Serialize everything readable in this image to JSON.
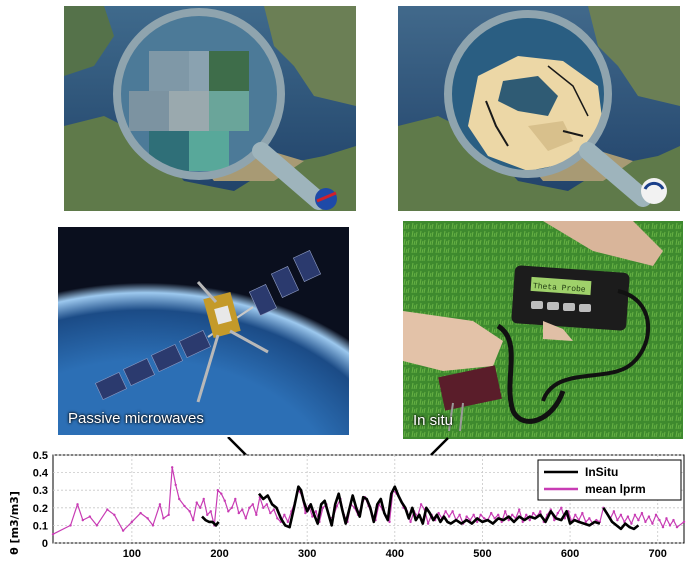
{
  "captions": {
    "satellite": "Passive microwaves",
    "insitu": "In situ"
  },
  "device_screen_text": "Theta Probe",
  "colors": {
    "insitu": "#000000",
    "lprm": "#c83cb4"
  },
  "chart_data": {
    "type": "line",
    "xlabel": "",
    "ylabel": "θ [m3/m3]",
    "xlim": [
      10,
      730
    ],
    "ylim": [
      0,
      0.5
    ],
    "xticks": [
      100,
      200,
      300,
      400,
      500,
      600,
      700
    ],
    "yticks": [
      0,
      0.1,
      0.2,
      0.3,
      0.4,
      0.5
    ],
    "grid": true,
    "legend_position": "top-right",
    "series": [
      {
        "name": "InSitu",
        "color": "#000000",
        "segments": [
          [
            [
              180,
              0.15
            ],
            [
              184,
              0.13
            ],
            [
              188,
              0.12
            ],
            [
              192,
              0.12
            ],
            [
              196,
              0.1
            ],
            [
              199,
              0.12
            ]
          ],
          [
            [
              245,
              0.28
            ],
            [
              250,
              0.25
            ],
            [
              255,
              0.27
            ],
            [
              260,
              0.22
            ],
            [
              265,
              0.2
            ],
            [
              270,
              0.14
            ],
            [
              275,
              0.1
            ],
            [
              280,
              0.09
            ],
            [
              285,
              0.2
            ],
            [
              290,
              0.32
            ],
            [
              293,
              0.3
            ],
            [
              296,
              0.24
            ],
            [
              300,
              0.18
            ],
            [
              304,
              0.22
            ],
            [
              308,
              0.16
            ],
            [
              312,
              0.11
            ],
            [
              316,
              0.22
            ],
            [
              320,
              0.24
            ],
            [
              324,
              0.17
            ],
            [
              328,
              0.1
            ],
            [
              332,
              0.22
            ],
            [
              336,
              0.28
            ],
            [
              340,
              0.19
            ],
            [
              344,
              0.11
            ],
            [
              348,
              0.19
            ],
            [
              352,
              0.27
            ],
            [
              356,
              0.2
            ],
            [
              360,
              0.15
            ],
            [
              364,
              0.26
            ],
            [
              368,
              0.25
            ],
            [
              372,
              0.2
            ],
            [
              376,
              0.12
            ],
            [
              380,
              0.22
            ],
            [
              384,
              0.25
            ],
            [
              388,
              0.17
            ],
            [
              392,
              0.13
            ],
            [
              396,
              0.28
            ],
            [
              400,
              0.32
            ],
            [
              404,
              0.27
            ],
            [
              408,
              0.23
            ],
            [
              412,
              0.2
            ],
            [
              416,
              0.14
            ],
            [
              420,
              0.2
            ],
            [
              424,
              0.13
            ],
            [
              428,
              0.16
            ],
            [
              432,
              0.11
            ],
            [
              436,
              0.2
            ],
            [
              440,
              0.17
            ],
            [
              444,
              0.13
            ],
            [
              448,
              0.16
            ],
            [
              452,
              0.12
            ],
            [
              456,
              0.15
            ],
            [
              460,
              0.12
            ],
            [
              464,
              0.11
            ],
            [
              470,
              0.13
            ],
            [
              476,
              0.11
            ],
            [
              482,
              0.13
            ],
            [
              488,
              0.11
            ],
            [
              494,
              0.14
            ],
            [
              500,
              0.12
            ],
            [
              506,
              0.13
            ],
            [
              512,
              0.11
            ],
            [
              518,
              0.14
            ],
            [
              524,
              0.13
            ],
            [
              530,
              0.15
            ],
            [
              536,
              0.12
            ],
            [
              542,
              0.15
            ],
            [
              548,
              0.13
            ],
            [
              554,
              0.15
            ],
            [
              560,
              0.14
            ],
            [
              566,
              0.16
            ],
            [
              572,
              0.12
            ],
            [
              578,
              0.18
            ],
            [
              584,
              0.14
            ],
            [
              590,
              0.13
            ],
            [
              596,
              0.18
            ],
            [
              600,
              0.11
            ],
            [
              605,
              0.13
            ],
            [
              610,
              0.12
            ],
            [
              616,
              0.11
            ],
            [
              622,
              0.1
            ],
            [
              628,
              0.12
            ],
            [
              634,
              0.11
            ]
          ],
          [
            [
              638,
              0.2
            ],
            [
              643,
              0.16
            ],
            [
              648,
              0.12
            ],
            [
              653,
              0.1
            ],
            [
              658,
              0.08
            ],
            [
              663,
              0.11
            ],
            [
              668,
              0.09
            ],
            [
              673,
              0.08
            ],
            [
              678,
              0.1
            ]
          ]
        ]
      },
      {
        "name": "mean lprm",
        "color": "#c83cb4",
        "segments": [
          [
            [
              10,
              0.05
            ],
            [
              30,
              0.1
            ],
            [
              38,
              0.22
            ],
            [
              44,
              0.13
            ],
            [
              52,
              0.15
            ],
            [
              60,
              0.1
            ],
            [
              72,
              0.19
            ],
            [
              80,
              0.16
            ],
            [
              90,
              0.07
            ],
            [
              100,
              0.12
            ],
            [
              110,
              0.17
            ],
            [
              118,
              0.14
            ],
            [
              124,
              0.1
            ],
            [
              132,
              0.22
            ],
            [
              136,
              0.14
            ],
            [
              142,
              0.16
            ],
            [
              146,
              0.43
            ],
            [
              150,
              0.33
            ],
            [
              154,
              0.25
            ],
            [
              160,
              0.21
            ],
            [
              166,
              0.18
            ],
            [
              170,
              0.13
            ],
            [
              174,
              0.23
            ],
            [
              178,
              0.2
            ],
            [
              182,
              0.25
            ],
            [
              186,
              0.16
            ],
            [
              190,
              0.18
            ],
            [
              194,
              0.1
            ],
            [
              198,
              0.3
            ],
            [
              202,
              0.28
            ],
            [
              206,
              0.24
            ],
            [
              210,
              0.18
            ],
            [
              214,
              0.2
            ],
            [
              218,
              0.25
            ],
            [
              222,
              0.17
            ],
            [
              226,
              0.19
            ],
            [
              230,
              0.14
            ],
            [
              234,
              0.2
            ],
            [
              238,
              0.22
            ],
            [
              242,
              0.16
            ],
            [
              246,
              0.26
            ],
            [
              250,
              0.2
            ],
            [
              254,
              0.22
            ],
            [
              258,
              0.17
            ],
            [
              262,
              0.19
            ],
            [
              266,
              0.14
            ],
            [
              270,
              0.12
            ],
            [
              274,
              0.16
            ],
            [
              278,
              0.12
            ],
            [
              282,
              0.18
            ],
            [
              286,
              0.23
            ],
            [
              290,
              0.3
            ],
            [
              294,
              0.27
            ],
            [
              298,
              0.17
            ],
            [
              302,
              0.21
            ],
            [
              306,
              0.15
            ],
            [
              310,
              0.18
            ],
            [
              314,
              0.12
            ],
            [
              318,
              0.2
            ],
            [
              322,
              0.22
            ],
            [
              326,
              0.14
            ],
            [
              330,
              0.15
            ],
            [
              334,
              0.21
            ],
            [
              338,
              0.25
            ],
            [
              342,
              0.16
            ],
            [
              346,
              0.12
            ],
            [
              350,
              0.22
            ],
            [
              354,
              0.2
            ],
            [
              358,
              0.16
            ],
            [
              362,
              0.21
            ],
            [
              366,
              0.26
            ],
            [
              370,
              0.21
            ],
            [
              374,
              0.16
            ],
            [
              378,
              0.13
            ],
            [
              382,
              0.22
            ],
            [
              386,
              0.19
            ],
            [
              390,
              0.15
            ],
            [
              394,
              0.12
            ],
            [
              398,
              0.3
            ],
            [
              402,
              0.28
            ],
            [
              406,
              0.25
            ],
            [
              410,
              0.2
            ],
            [
              414,
              0.18
            ],
            [
              418,
              0.12
            ],
            [
              422,
              0.18
            ],
            [
              426,
              0.15
            ],
            [
              430,
              0.22
            ],
            [
              434,
              0.19
            ],
            [
              438,
              0.11
            ],
            [
              442,
              0.16
            ],
            [
              446,
              0.13
            ],
            [
              450,
              0.17
            ],
            [
              454,
              0.14
            ],
            [
              458,
              0.18
            ],
            [
              462,
              0.15
            ],
            [
              466,
              0.18
            ],
            [
              470,
              0.13
            ],
            [
              474,
              0.16
            ],
            [
              478,
              0.11
            ],
            [
              482,
              0.15
            ],
            [
              486,
              0.13
            ],
            [
              490,
              0.16
            ],
            [
              494,
              0.12
            ],
            [
              498,
              0.16
            ],
            [
              502,
              0.14
            ],
            [
              506,
              0.13
            ],
            [
              510,
              0.17
            ],
            [
              514,
              0.14
            ],
            [
              518,
              0.16
            ],
            [
              522,
              0.12
            ],
            [
              526,
              0.18
            ],
            [
              530,
              0.13
            ],
            [
              534,
              0.16
            ],
            [
              538,
              0.14
            ],
            [
              542,
              0.19
            ],
            [
              546,
              0.12
            ],
            [
              550,
              0.16
            ],
            [
              554,
              0.13
            ],
            [
              558,
              0.17
            ],
            [
              562,
              0.15
            ],
            [
              566,
              0.18
            ],
            [
              570,
              0.12
            ],
            [
              574,
              0.16
            ],
            [
              578,
              0.19
            ],
            [
              582,
              0.13
            ],
            [
              586,
              0.17
            ],
            [
              590,
              0.2
            ],
            [
              594,
              0.14
            ],
            [
              598,
              0.18
            ],
            [
              602,
              0.12
            ],
            [
              606,
              0.16
            ],
            [
              610,
              0.13
            ],
            [
              614,
              0.17
            ],
            [
              618,
              0.12
            ],
            [
              622,
              0.14
            ],
            [
              626,
              0.11
            ],
            [
              630,
              0.13
            ],
            [
              634,
              0.12
            ],
            [
              638,
              0.2
            ],
            [
              642,
              0.17
            ],
            [
              646,
              0.14
            ],
            [
              650,
              0.18
            ],
            [
              654,
              0.13
            ],
            [
              658,
              0.16
            ],
            [
              662,
              0.12
            ],
            [
              666,
              0.15
            ],
            [
              670,
              0.11
            ],
            [
              674,
              0.16
            ],
            [
              678,
              0.13
            ],
            [
              682,
              0.17
            ],
            [
              686,
              0.12
            ],
            [
              690,
              0.15
            ],
            [
              694,
              0.11
            ],
            [
              698,
              0.16
            ],
            [
              702,
              0.13
            ],
            [
              706,
              0.09
            ],
            [
              710,
              0.14
            ],
            [
              714,
              0.1
            ],
            [
              718,
              0.13
            ],
            [
              722,
              0.09
            ],
            [
              730,
              0.12
            ]
          ]
        ]
      }
    ]
  }
}
